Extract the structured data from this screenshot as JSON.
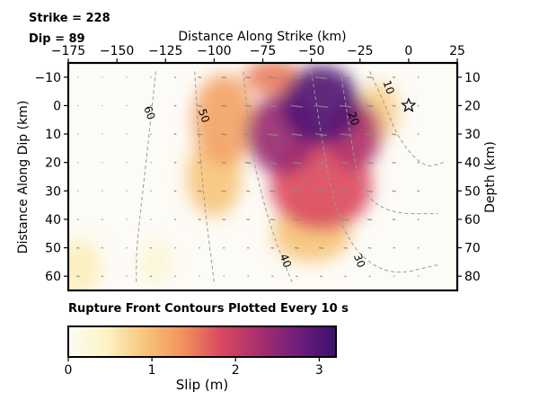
{
  "header": {
    "strike": "Strike = 228",
    "dip": "Dip = 89"
  },
  "chart_data": {
    "type": "heatmap",
    "title": "",
    "xlabel_top": "Distance Along Strike (km)",
    "ylabel_left": "Distance Along Dip (km)",
    "ylabel_right": "Depth (km)",
    "xlim": [
      -175,
      25
    ],
    "ylim_dip": [
      -15,
      65
    ],
    "x_ticks": [
      -175,
      -150,
      -125,
      -100,
      -75,
      -50,
      -25,
      0,
      25
    ],
    "x_tick_labels": [
      "−175",
      "−150",
      "−125",
      "−100",
      "−75",
      "−50",
      "−25",
      "0",
      "25"
    ],
    "dip_ticks": [
      -10,
      0,
      10,
      20,
      30,
      40,
      50,
      60
    ],
    "dip_tick_labels": [
      "−10",
      "0",
      "10",
      "20",
      "30",
      "40",
      "50",
      "60"
    ],
    "depth_ticks": [
      10,
      20,
      30,
      40,
      50,
      60,
      70,
      80
    ],
    "depth_tick_labels": [
      "10",
      "20",
      "30",
      "40",
      "50",
      "60",
      "70",
      "80"
    ],
    "hypocenter": {
      "x": 0,
      "dip": 0
    },
    "slip_patches": [
      {
        "x": -45,
        "dip": 0,
        "sx": 20,
        "sy": 14,
        "slip": 3.0
      },
      {
        "x": -65,
        "dip": 10,
        "sx": 18,
        "sy": 14,
        "slip": 2.4
      },
      {
        "x": -28,
        "dip": 10,
        "sx": 14,
        "sy": 12,
        "slip": 2.2
      },
      {
        "x": -45,
        "dip": 28,
        "sx": 26,
        "sy": 16,
        "slip": 1.8
      },
      {
        "x": -70,
        "dip": -10,
        "sx": 14,
        "sy": 6,
        "slip": 1.5
      },
      {
        "x": -95,
        "dip": 5,
        "sx": 16,
        "sy": 16,
        "slip": 1.2
      },
      {
        "x": -100,
        "dip": 25,
        "sx": 14,
        "sy": 14,
        "slip": 0.9
      },
      {
        "x": -15,
        "dip": 2,
        "sx": 10,
        "sy": 10,
        "slip": 0.8
      },
      {
        "x": -50,
        "dip": 45,
        "sx": 20,
        "sy": 10,
        "slip": 0.9
      },
      {
        "x": -170,
        "dip": 57,
        "sx": 12,
        "sy": 10,
        "slip": 0.5
      },
      {
        "x": -130,
        "dip": 55,
        "sx": 8,
        "sy": 8,
        "slip": 0.3
      }
    ],
    "rupture_contours": [
      {
        "label": "10",
        "points": [
          [
            -20,
            -12
          ],
          [
            -12,
            0
          ],
          [
            -5,
            12
          ],
          [
            8,
            22
          ],
          [
            18,
            20
          ]
        ]
      },
      {
        "label": "20",
        "points": [
          [
            -35,
            -12
          ],
          [
            -30,
            10
          ],
          [
            -25,
            30
          ],
          [
            -10,
            38
          ],
          [
            15,
            38
          ]
        ]
      },
      {
        "label": "30",
        "points": [
          [
            -50,
            -12
          ],
          [
            -45,
            10
          ],
          [
            -40,
            30
          ],
          [
            -30,
            50
          ],
          [
            -10,
            60
          ],
          [
            15,
            56
          ]
        ]
      },
      {
        "label": "40",
        "points": [
          [
            -85,
            -12
          ],
          [
            -82,
            10
          ],
          [
            -78,
            25
          ],
          [
            -70,
            45
          ],
          [
            -60,
            62
          ]
        ]
      },
      {
        "label": "50",
        "points": [
          [
            -110,
            -12
          ],
          [
            -108,
            10
          ],
          [
            -105,
            35
          ],
          [
            -100,
            62
          ]
        ]
      },
      {
        "label": "60",
        "points": [
          [
            -130,
            -12
          ],
          [
            -135,
            20
          ],
          [
            -140,
            50
          ],
          [
            -140,
            62
          ]
        ]
      }
    ],
    "contour_label_positions": [
      {
        "label": "10",
        "x": -12,
        "dip": -6
      },
      {
        "label": "20",
        "x": -30,
        "dip": 5
      },
      {
        "label": "30",
        "x": -27,
        "dip": 55
      },
      {
        "label": "40",
        "x": -65,
        "dip": 55
      },
      {
        "label": "50",
        "x": -107,
        "dip": 4
      },
      {
        "label": "60",
        "x": -135,
        "dip": 3
      }
    ],
    "contour_caption": "Rupture Front Contours Plotted Every 10 s",
    "colorbar": {
      "label": "Slip (m)",
      "range": [
        0,
        3.2
      ],
      "ticks": [
        0,
        1,
        2,
        3
      ],
      "tick_labels": [
        "0",
        "1",
        "2",
        "3"
      ],
      "colors": [
        "#fcfbf5",
        "#fcf4c4",
        "#f7c57a",
        "#f1925c",
        "#d9485f",
        "#a82e6e",
        "#6f1e7a",
        "#3c0f6e"
      ]
    }
  }
}
